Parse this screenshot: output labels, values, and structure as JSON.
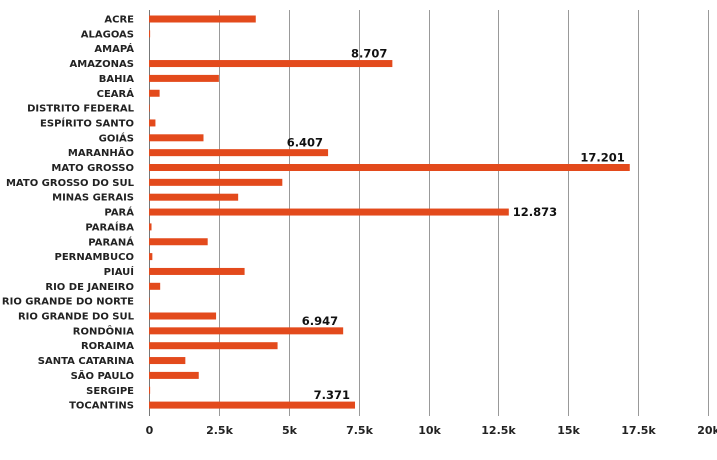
{
  "chart_data": {
    "type": "bar",
    "orientation": "horizontal",
    "categories": [
      "ACRE",
      "ALAGOAS",
      "AMAPÁ",
      "AMAZONAS",
      "BAHIA",
      "CEARÁ",
      "DISTRITO FEDERAL",
      "ESPÍRITO SANTO",
      "GOIÁS",
      "MARANHÃO",
      "MATO GROSSO",
      "MATO GROSSO DO SUL",
      "MINAS GERAIS",
      "PARÁ",
      "PARAÍBA",
      "PARANÁ",
      "PERNAMBUCO",
      "PIAUÍ",
      "RIO DE JANEIRO",
      "RIO GRANDE DO NORTE",
      "RIO GRANDE DO SUL",
      "RONDÔNIA",
      "RORAIMA",
      "SANTA CATARINA",
      "SÃO PAULO",
      "SERGIPE",
      "TOCANTINS"
    ],
    "values": [
      3820,
      40,
      0,
      8707,
      2500,
      380,
      25,
      230,
      1950,
      6407,
      17201,
      4770,
      3190,
      12873,
      90,
      2100,
      120,
      3420,
      400,
      20,
      2400,
      6947,
      4600,
      1300,
      1780,
      40,
      7371
    ],
    "data_labels": [
      "",
      "",
      "",
      "8.707",
      "",
      "",
      "",
      "",
      "",
      "6.407",
      "17.201",
      "",
      "",
      "12.873",
      "",
      "",
      "",
      "",
      "",
      "",
      "",
      "6.947",
      "",
      "",
      "",
      "",
      "7.371"
    ],
    "xlim": [
      0,
      20000
    ],
    "xticks": [
      0,
      2500,
      5000,
      7500,
      10000,
      12500,
      15000,
      17500,
      20000
    ],
    "xtick_labels": [
      "0",
      "2.5k",
      "5k",
      "7.5k",
      "10k",
      "12.5k",
      "15k",
      "17.5k",
      "20k"
    ],
    "bar_color": "#e34a1c",
    "grid": true,
    "legend": "none",
    "title": "",
    "xlabel": "",
    "ylabel": ""
  }
}
